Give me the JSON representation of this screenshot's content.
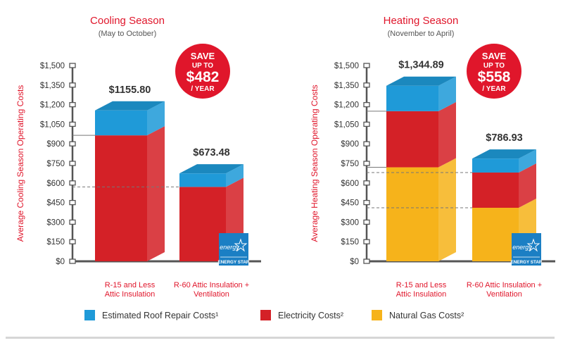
{
  "colors": {
    "roof": "#1f9ad8",
    "electricity": "#d42127",
    "gas": "#f6b31b",
    "title": "#e0162b",
    "axis": "#555555",
    "badge": "#e0162b",
    "energy_star": "#1b7fc4"
  },
  "legend": [
    {
      "key": "roof",
      "label": "Estimated Roof Repair Costs¹"
    },
    {
      "key": "electricity",
      "label": "Electricity Costs²"
    },
    {
      "key": "gas",
      "label": "Natural Gas Costs²"
    }
  ],
  "chart_data": [
    {
      "type": "bar",
      "stacked": true,
      "title": "Cooling Season",
      "subtitle": "(May to October)",
      "ylabel": "Average Cooling Season Operating Costs",
      "ylim": [
        0,
        1500
      ],
      "yticks": [
        "$0",
        "$150",
        "$300",
        "$450",
        "$600",
        "$750",
        "$900",
        "$1,050",
        "$1,200",
        "$1,350",
        "$1,500"
      ],
      "categories": [
        "R-15 and Less\nAttic Insulation",
        "R-60 Attic Insulation +\nVentilation"
      ],
      "series": [
        {
          "key": "gas",
          "values": [
            0,
            0
          ]
        },
        {
          "key": "electricity",
          "values": [
            965,
            570
          ]
        },
        {
          "key": "roof",
          "values": [
            190.8,
            103.48
          ]
        }
      ],
      "totals": [
        "$1155.80",
        "$673.48"
      ],
      "badge": {
        "line1": "SAVE",
        "line2": "UP TO",
        "amount": "$482",
        "line3": "/ YEAR"
      },
      "energy_star_text": "ENERGY STAR",
      "energy_star_script": "energy"
    },
    {
      "type": "bar",
      "stacked": true,
      "title": "Heating Season",
      "subtitle": "(November to April)",
      "ylabel": "Average Heating Season Operating Costs",
      "ylim": [
        0,
        1500
      ],
      "yticks": [
        "$0",
        "$150",
        "$300",
        "$450",
        "$600",
        "$750",
        "$900",
        "$1,050",
        "$1,200",
        "$1,350",
        "$1,500"
      ],
      "categories": [
        "R-15 and Less\nAttic Insulation",
        "R-60 Attic Insulation +\nVentilation"
      ],
      "series": [
        {
          "key": "gas",
          "values": [
            720,
            410
          ]
        },
        {
          "key": "electricity",
          "values": [
            430,
            270
          ]
        },
        {
          "key": "roof",
          "values": [
            194.89,
            106.93
          ]
        }
      ],
      "totals": [
        "$1,344.89",
        "$786.93"
      ],
      "badge": {
        "line1": "SAVE",
        "line2": "UP TO",
        "amount": "$558",
        "line3": "/ YEAR"
      },
      "energy_star_text": "ENERGY STAR",
      "energy_star_script": "energy"
    }
  ]
}
